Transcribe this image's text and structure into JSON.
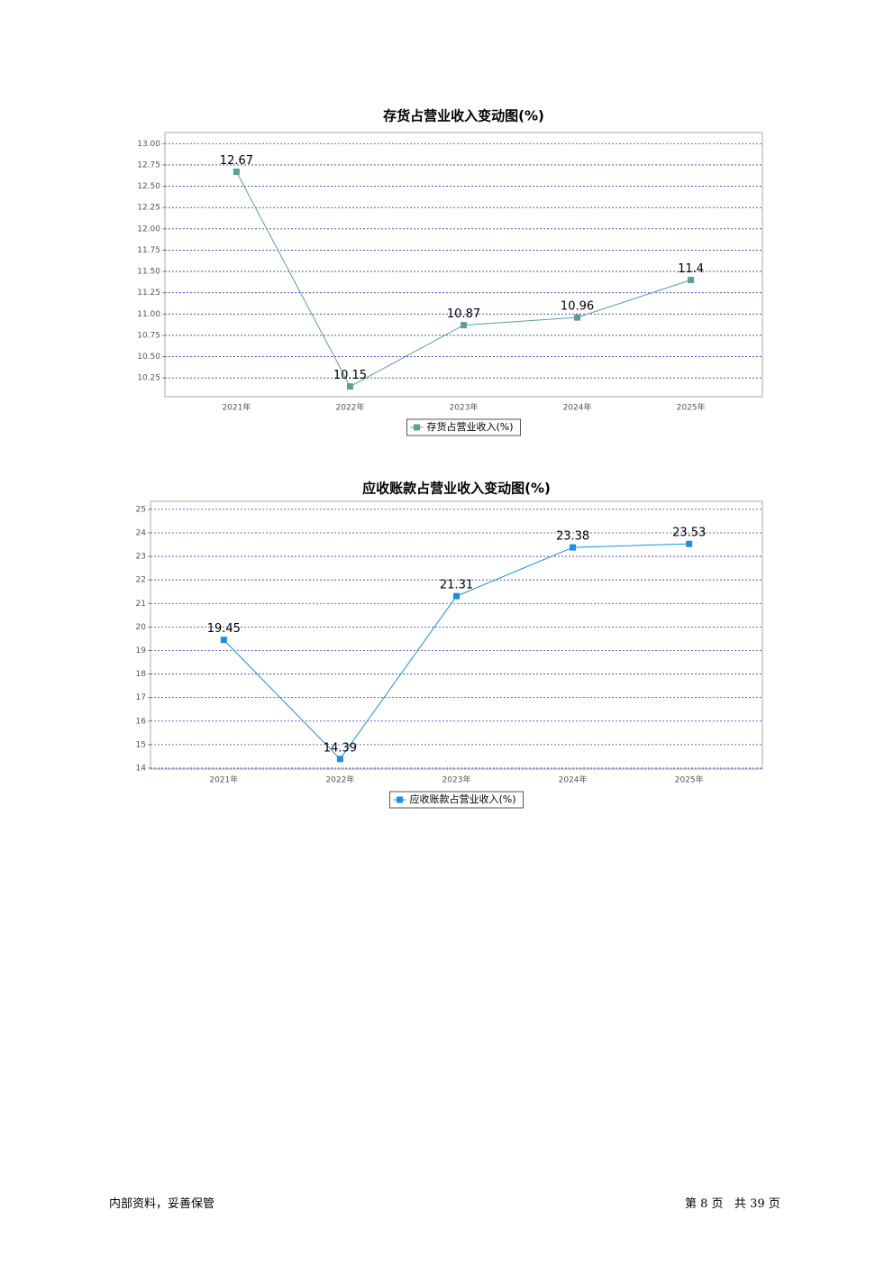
{
  "chart_data": [
    {
      "type": "line",
      "title": "存货占营业收入变动图(%)",
      "categories": [
        "2021年",
        "2022年",
        "2023年",
        "2024年",
        "2025年"
      ],
      "series": [
        {
          "name": "存货占营业收入(%)",
          "color": "#5f9e96",
          "values": [
            12.67,
            10.15,
            10.87,
            10.96,
            11.4
          ]
        }
      ],
      "ylim": [
        10.03,
        13.13
      ],
      "yticks": [
        10.25,
        {
          "value": 10.5,
          "label": "10.50"
        },
        10.75,
        {
          "value": 11,
          "label": "11.00"
        },
        11.25,
        {
          "value": 11.5,
          "label": "11.50"
        },
        11.75,
        {
          "value": 12,
          "label": "12.00"
        },
        12.25,
        {
          "value": 12.5,
          "label": "12.50"
        },
        12.75,
        {
          "value": 13,
          "label": "13.00"
        }
      ],
      "grid": true,
      "legend": "bottom"
    },
    {
      "type": "line",
      "title": "应收账款占营业收入变动图(%)",
      "categories": [
        "2021年",
        "2022年",
        "2023年",
        "2024年",
        "2025年"
      ],
      "series": [
        {
          "name": "应收账款占营业收入(%)",
          "color": "#1a8fe3",
          "values": [
            19.45,
            14.39,
            21.31,
            23.38,
            23.53
          ]
        }
      ],
      "ylim": [
        13.96,
        25.34
      ],
      "yticks": [
        14,
        15,
        16,
        17,
        18,
        19,
        20,
        21,
        22,
        23,
        24,
        25
      ],
      "grid": true,
      "legend": "bottom"
    }
  ],
  "footer": {
    "left": "内部资料，妥善保管",
    "right": "第 8 页   共 39 页"
  }
}
